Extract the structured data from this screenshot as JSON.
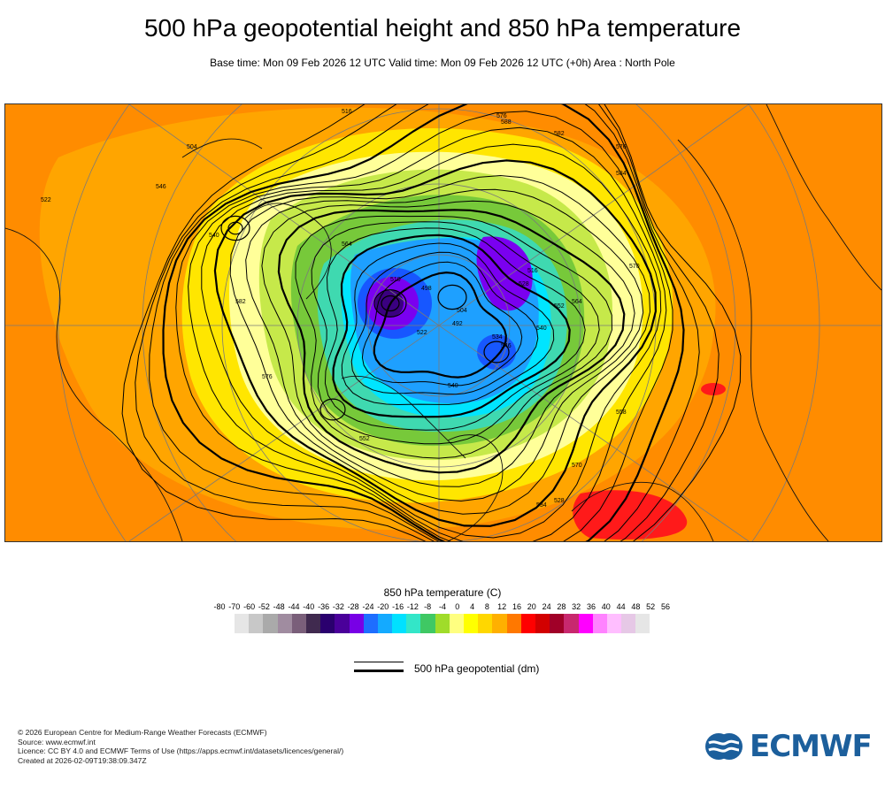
{
  "title": "500 hPa geopotential height and 850 hPa temperature",
  "subtitle": "Base time: Mon 09 Feb 2026 12 UTC Valid time: Mon 09 Feb 2026 12 UTC (+0h) Area : North Pole",
  "map": {
    "contour_labels": [
      "576",
      "588",
      "582",
      "576",
      "584",
      "570",
      "564",
      "552",
      "540",
      "528",
      "516",
      "504",
      "492",
      "498",
      "510",
      "522",
      "534",
      "546",
      "558",
      "570",
      "528",
      "534",
      "552",
      "540",
      "564",
      "576",
      "582",
      "540",
      "546",
      "504",
      "516",
      "522"
    ],
    "colors": {
      "warm": "#ff8c00",
      "orange2": "#ffa500",
      "yellow": "#ffe600",
      "paleyellow": "#ffff99",
      "lime": "#c6e94a",
      "green": "#77c93a",
      "teal": "#3fd9b0",
      "cyan": "#00e5ff",
      "blue": "#1ea0ff",
      "darkblue": "#1757ff",
      "purple": "#7a00f0",
      "darkpurple": "#3a0080",
      "red": "#ff1a1a"
    }
  },
  "colorbar": {
    "title": "850 hPa temperature (C)",
    "ticks": [
      "-80",
      "-70",
      "-60",
      "-52",
      "-48",
      "-44",
      "-40",
      "-36",
      "-32",
      "-28",
      "-24",
      "-20",
      "-16",
      "-12",
      "-8",
      "-4",
      "0",
      "4",
      "8",
      "12",
      "16",
      "20",
      "24",
      "28",
      "32",
      "36",
      "40",
      "44",
      "48",
      "52",
      "56"
    ],
    "colors": [
      "#e6e6e6",
      "#c8c8c8",
      "#aaaaaa",
      "#a08ca0",
      "#7a5f7a",
      "#402a4f",
      "#2a006e",
      "#4a009a",
      "#7800e6",
      "#1e6eff",
      "#14aaff",
      "#00e1ff",
      "#33e6c8",
      "#3fc864",
      "#a0dc2a",
      "#ffff80",
      "#ffff00",
      "#ffd700",
      "#ffb000",
      "#ff7800",
      "#ff0000",
      "#d20000",
      "#a00028",
      "#c8286e",
      "#ff00ff",
      "#ff82ff",
      "#ffbeff",
      "#e6c8e6",
      "#e6e6e6"
    ]
  },
  "legend": {
    "label": "500 hPa geopotential (dm)"
  },
  "footer": {
    "lines": [
      "© 2026 European Centre for Medium-Range Weather Forecasts (ECMWF)",
      "Source: www.ecmwf.int",
      "Licence: CC BY 4.0 and ECMWF Terms of Use (https://apps.ecmwf.int/datasets/licences/general/)",
      "Created at 2026-02-09T19:38:09.347Z"
    ]
  },
  "logo": {
    "text": "ECMWF",
    "color": "#1c5f9c"
  }
}
